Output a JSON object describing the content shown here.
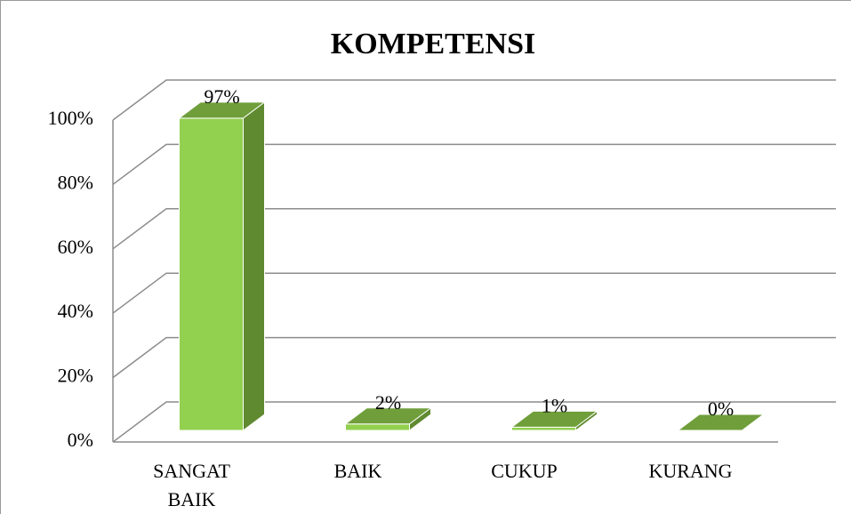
{
  "chart_data": {
    "type": "bar3d",
    "title": "KOMPETENSI",
    "categories": [
      "SANGAT BAIK",
      "BAIK",
      "CUKUP",
      "KURANG"
    ],
    "values": [
      97,
      2,
      1,
      0
    ],
    "value_labels": [
      "97%",
      "2%",
      "1%",
      "0%"
    ],
    "color": "#92d050",
    "ylim": [
      0,
      100
    ],
    "yticks": [
      {
        "value": 0,
        "label": "0%"
      },
      {
        "value": 20,
        "label": "20%"
      },
      {
        "value": 40,
        "label": "40%"
      },
      {
        "value": 60,
        "label": "60%"
      },
      {
        "value": 80,
        "label": "80%"
      },
      {
        "value": 100,
        "label": "100%"
      }
    ],
    "grid": true
  }
}
